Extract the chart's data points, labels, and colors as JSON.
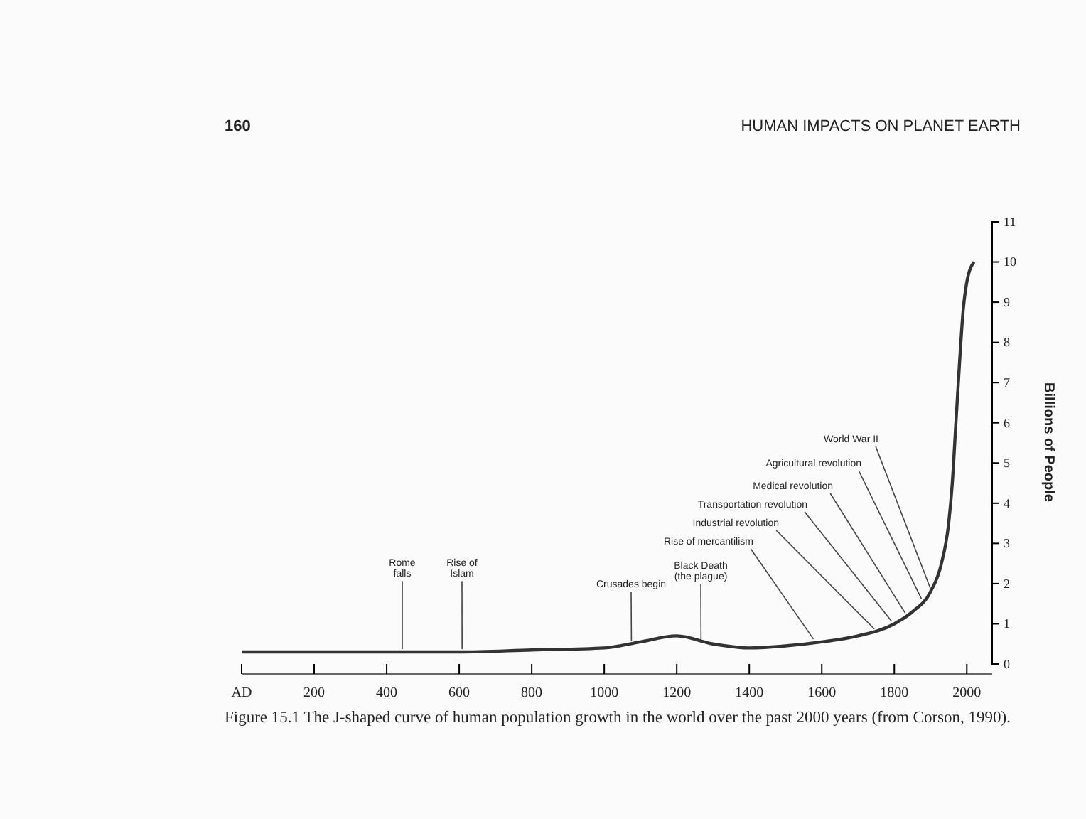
{
  "chart_data": {
    "type": "line",
    "title": "HUMAN IMPACTS ON PLANET EARTH",
    "subtitle": "160",
    "ylabel": "Billions of People",
    "x": [
      0,
      200,
      400,
      600,
      800,
      1000,
      1100,
      1200,
      1300,
      1400,
      1500,
      1600,
      1700,
      1800,
      1850,
      1900,
      1930,
      1950,
      1960,
      1970,
      1980,
      1990,
      2000,
      2020
    ],
    "series": [
      {
        "color": "#333333",
        "values": [
          0.3,
          0.3,
          0.3,
          0.3,
          0.35,
          0.4,
          0.55,
          0.7,
          0.5,
          0.4,
          0.45,
          0.55,
          0.7,
          1.0,
          1.3,
          1.8,
          2.5,
          3.5,
          4.5,
          6,
          7.5,
          8.8,
          9.5,
          10
        ]
      }
    ],
    "xlim": [
      0,
      2070
    ],
    "xticks": [
      {
        "value": 0,
        "label": "AD"
      },
      200,
      400,
      600,
      800,
      1000,
      1200,
      1400,
      1600,
      1800,
      2000
    ],
    "ylim": [
      0,
      11
    ],
    "yticks": [
      0,
      1,
      2,
      3,
      4,
      5,
      6,
      7,
      8,
      9,
      10,
      11
    ],
    "grid": false,
    "marker": "none",
    "line_style": "solid",
    "annotations": [
      {
        "text": "Rome falls",
        "x": 443,
        "y": 0.3
      },
      {
        "text": "Rise of Islam",
        "x": 608,
        "y": 0.3
      },
      {
        "text": "Crusades begin",
        "x": 1075,
        "y": 0.5
      },
      {
        "text": "Black Death (the plague)",
        "x": 1267,
        "y": 0.55
      },
      {
        "text": "Rise of mercantilism",
        "x": 1577,
        "y": 0.55
      },
      {
        "text": "Industrial revolution",
        "x": 1745,
        "y": 0.8
      },
      {
        "text": "Transportation revolution",
        "x": 1792,
        "y": 1.0
      },
      {
        "text": "Medical revolution",
        "x": 1830,
        "y": 1.2
      },
      {
        "text": "Agricultural revolution",
        "x": 1875,
        "y": 1.55
      },
      {
        "text": "World War II",
        "x": 1900,
        "y": 1.8
      },
      "Figure 15.1 The J-shaped curve of human population growth in the world over the past 2000 years (from Corson, 1990)."
    ]
  }
}
